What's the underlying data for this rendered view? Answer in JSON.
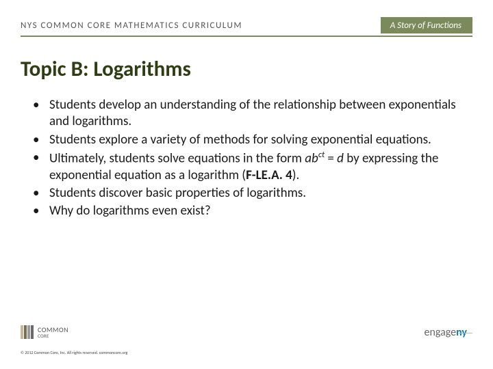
{
  "header": {
    "left": "NYS COMMON CORE MATHEMATICS CURRICULUM",
    "right": "A Story of Functions"
  },
  "title": "Topic B:  Logarithms",
  "bullets": [
    {
      "text": "Students develop an understanding of the relationship between exponentials and logarithms."
    },
    {
      "text": "Students explore a variety of methods for solving exponential equations."
    },
    {
      "prefix": "Ultimately, students solve equations in the form ",
      "formula_base": "ab",
      "formula_sup": "ct",
      "formula_mid": " = ",
      "formula_right": "d",
      "suffix": " by expressing the exponential equation as a logarithm (",
      "standard": "F-LE.A. 4",
      "close": ")."
    },
    {
      "text": "Students discover basic properties of logarithms."
    },
    {
      "text": "Why do logarithms even exist?"
    }
  ],
  "footer": {
    "logo_top": "COMMON",
    "logo_bottom": "CORE",
    "copyright": "© 2012 Common Core, Inc. All rights reserved. commoncore.org",
    "engage_prefix": "engage",
    "engage_suffix": "ny"
  },
  "colors": {
    "accent": "#7a8a5a",
    "title": "#2f3d13",
    "text": "#1a1a1a",
    "engage_ny": "#0a7fa8"
  }
}
